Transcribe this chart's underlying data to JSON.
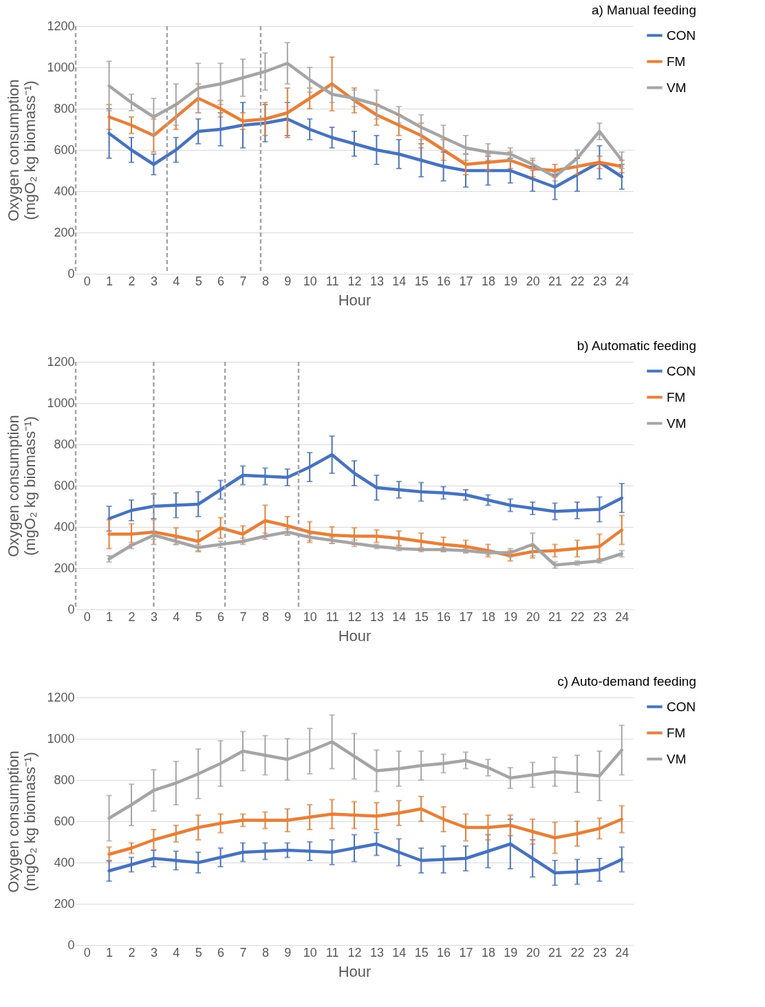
{
  "chart_data": [
    {
      "type": "line",
      "title": "a) Manual feeding",
      "xlabel": "Hour",
      "ylabel": "Oxygen consumption (mgO₂ kg biomass⁻¹)",
      "x": [
        1,
        2,
        3,
        4,
        5,
        6,
        7,
        8,
        9,
        10,
        11,
        12,
        13,
        14,
        15,
        16,
        17,
        18,
        19,
        20,
        21,
        22,
        23,
        24
      ],
      "xlim": [
        -0.5,
        24.5
      ],
      "xticks": [
        0,
        1,
        2,
        3,
        4,
        5,
        6,
        7,
        8,
        9,
        10,
        11,
        12,
        13,
        14,
        15,
        16,
        17,
        18,
        19,
        20,
        21,
        22,
        23,
        24
      ],
      "ylim": [
        0,
        1200
      ],
      "yticks": [
        0,
        200,
        400,
        600,
        800,
        1000,
        1200
      ],
      "grid": "y",
      "legend": "right",
      "ref_lines": [
        {
          "axis": "x",
          "value": -0.5,
          "line_style": "dashed",
          "color": "#a5a5a5"
        },
        {
          "axis": "x",
          "value": 3.6,
          "line_style": "dashed",
          "color": "#a5a5a5"
        },
        {
          "axis": "x",
          "value": 7.8,
          "line_style": "dashed",
          "color": "#a5a5a5"
        }
      ],
      "series": [
        {
          "name": "CON",
          "color": "#4472c4",
          "values": [
            680,
            600,
            530,
            600,
            690,
            700,
            720,
            730,
            750,
            700,
            660,
            630,
            600,
            580,
            550,
            520,
            500,
            500,
            500,
            460,
            420,
            480,
            540,
            470
          ],
          "errors": [
            120,
            60,
            50,
            60,
            60,
            80,
            110,
            90,
            80,
            50,
            50,
            60,
            70,
            70,
            80,
            70,
            80,
            70,
            60,
            60,
            60,
            80,
            80,
            60
          ]
        },
        {
          "name": "FM",
          "color": "#ed7d31",
          "values": [
            760,
            720,
            670,
            760,
            850,
            800,
            740,
            750,
            780,
            850,
            920,
            840,
            770,
            720,
            670,
            600,
            530,
            540,
            550,
            510,
            500,
            520,
            540,
            520
          ],
          "errors": [
            60,
            40,
            80,
            60,
            70,
            40,
            40,
            80,
            120,
            50,
            130,
            60,
            50,
            50,
            60,
            50,
            50,
            40,
            40,
            40,
            30,
            40,
            30,
            30
          ]
        },
        {
          "name": "VM",
          "color": "#a5a5a5",
          "values": [
            910,
            830,
            760,
            820,
            900,
            920,
            950,
            980,
            1020,
            940,
            870,
            850,
            820,
            770,
            710,
            660,
            610,
            590,
            580,
            530,
            470,
            560,
            690,
            550
          ],
          "errors": [
            120,
            40,
            90,
            100,
            120,
            100,
            90,
            90,
            100,
            60,
            40,
            40,
            70,
            40,
            60,
            60,
            60,
            40,
            30,
            30,
            20,
            40,
            40,
            40
          ]
        }
      ]
    },
    {
      "type": "line",
      "title": "b) Automatic feeding",
      "xlabel": "Hour",
      "ylabel": "Oxygen consumption (mgO₂ kg biomass⁻¹)",
      "x": [
        1,
        2,
        3,
        4,
        5,
        6,
        7,
        8,
        9,
        10,
        11,
        12,
        13,
        14,
        15,
        16,
        17,
        18,
        19,
        20,
        21,
        22,
        23,
        24
      ],
      "xlim": [
        -0.5,
        24.5
      ],
      "xticks": [
        0,
        1,
        2,
        3,
        4,
        5,
        6,
        7,
        8,
        9,
        10,
        11,
        12,
        13,
        14,
        15,
        16,
        17,
        18,
        19,
        20,
        21,
        22,
        23,
        24
      ],
      "ylim": [
        0,
        1200
      ],
      "yticks": [
        0,
        200,
        400,
        600,
        800,
        1000,
        1200
      ],
      "grid": "y",
      "legend": "right",
      "ref_lines": [
        {
          "axis": "x",
          "value": -0.5,
          "line_style": "dashed",
          "color": "#a5a5a5"
        },
        {
          "axis": "x",
          "value": 3.0,
          "line_style": "dashed",
          "color": "#a5a5a5"
        },
        {
          "axis": "x",
          "value": 6.2,
          "line_style": "dashed",
          "color": "#a5a5a5"
        },
        {
          "axis": "x",
          "value": 9.5,
          "line_style": "dashed",
          "color": "#a5a5a5"
        }
      ],
      "series": [
        {
          "name": "CON",
          "color": "#4472c4",
          "values": [
            440,
            480,
            500,
            505,
            510,
            580,
            650,
            645,
            640,
            690,
            750,
            660,
            590,
            580,
            570,
            565,
            555,
            530,
            505,
            490,
            475,
            480,
            485,
            540
          ],
          "errors": [
            60,
            50,
            60,
            60,
            60,
            45,
            45,
            40,
            40,
            70,
            90,
            60,
            60,
            40,
            45,
            30,
            25,
            25,
            30,
            30,
            40,
            40,
            60,
            70
          ]
        },
        {
          "name": "FM",
          "color": "#ed7d31",
          "values": [
            365,
            365,
            375,
            355,
            330,
            395,
            365,
            430,
            405,
            375,
            360,
            355,
            355,
            345,
            330,
            315,
            305,
            285,
            260,
            280,
            285,
            295,
            305,
            385
          ],
          "errors": [
            70,
            50,
            60,
            40,
            50,
            50,
            40,
            75,
            45,
            50,
            40,
            40,
            30,
            35,
            40,
            35,
            30,
            30,
            25,
            30,
            30,
            40,
            60,
            70
          ]
        },
        {
          "name": "VM",
          "color": "#a5a5a5",
          "values": [
            245,
            310,
            360,
            330,
            300,
            315,
            330,
            355,
            375,
            350,
            335,
            320,
            305,
            295,
            290,
            290,
            285,
            275,
            275,
            315,
            215,
            225,
            235,
            270
          ],
          "errors": [
            15,
            15,
            20,
            15,
            15,
            15,
            15,
            15,
            15,
            15,
            15,
            15,
            10,
            10,
            10,
            10,
            10,
            10,
            20,
            55,
            15,
            10,
            10,
            15
          ]
        }
      ]
    },
    {
      "type": "line",
      "title": "c) Auto-demand feeding",
      "xlabel": "Hour",
      "ylabel": "Oxygen consumption (mgO₂ kg biomass⁻¹)",
      "x": [
        1,
        2,
        3,
        4,
        5,
        6,
        7,
        8,
        9,
        10,
        11,
        12,
        13,
        14,
        15,
        16,
        17,
        18,
        19,
        20,
        21,
        22,
        23,
        24
      ],
      "xlim": [
        -0.5,
        24.5
      ],
      "xticks": [
        0,
        1,
        2,
        3,
        4,
        5,
        6,
        7,
        8,
        9,
        10,
        11,
        12,
        13,
        14,
        15,
        16,
        17,
        18,
        19,
        20,
        21,
        22,
        23,
        24
      ],
      "ylim": [
        0,
        1200
      ],
      "yticks": [
        0,
        200,
        400,
        600,
        800,
        1000,
        1200
      ],
      "grid": "y",
      "legend": "right",
      "series": [
        {
          "name": "CON",
          "color": "#4472c4",
          "values": [
            360,
            390,
            420,
            410,
            400,
            425,
            450,
            455,
            460,
            455,
            450,
            470,
            490,
            450,
            410,
            415,
            420,
            455,
            490,
            420,
            350,
            355,
            365,
            415
          ],
          "errors": [
            50,
            35,
            40,
            45,
            50,
            45,
            45,
            40,
            35,
            45,
            60,
            65,
            55,
            65,
            60,
            65,
            60,
            80,
            120,
            90,
            60,
            60,
            55,
            60
          ]
        },
        {
          "name": "FM",
          "color": "#ed7d31",
          "values": [
            440,
            470,
            510,
            540,
            570,
            590,
            605,
            605,
            605,
            620,
            635,
            630,
            625,
            640,
            660,
            610,
            570,
            570,
            580,
            550,
            520,
            540,
            565,
            610
          ],
          "errors": [
            35,
            25,
            50,
            40,
            60,
            45,
            30,
            40,
            55,
            60,
            70,
            65,
            65,
            60,
            60,
            60,
            65,
            60,
            50,
            60,
            75,
            60,
            50,
            65
          ]
        },
        {
          "name": "VM",
          "color": "#a5a5a5",
          "values": [
            615,
            680,
            750,
            785,
            830,
            880,
            940,
            920,
            900,
            940,
            985,
            915,
            845,
            855,
            870,
            880,
            895,
            860,
            810,
            825,
            840,
            830,
            820,
            945
          ],
          "errors": [
            110,
            100,
            100,
            105,
            120,
            110,
            95,
            95,
            100,
            110,
            130,
            110,
            100,
            85,
            70,
            45,
            40,
            40,
            50,
            60,
            70,
            90,
            120,
            120
          ]
        }
      ]
    }
  ]
}
